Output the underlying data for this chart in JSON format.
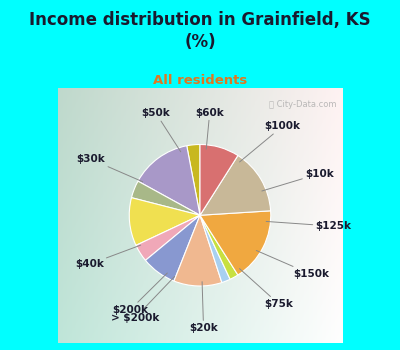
{
  "title": "Income distribution in Grainfield, KS\n(%)",
  "subtitle": "All residents",
  "title_color": "#1a1a2e",
  "subtitle_color": "#e07820",
  "background_color": "#00FFFF",
  "labels": [
    "$60k",
    "$100k",
    "$10k",
    "$125k",
    "$150k",
    "$75k",
    "$20k",
    "> $200k",
    "$200k",
    "$40k",
    "$30k",
    "$50k"
  ],
  "sizes": [
    3,
    14,
    4,
    11,
    4,
    8,
    11,
    2,
    2,
    17,
    15,
    9
  ],
  "colors": [
    "#c8b820",
    "#a898c8",
    "#a8b888",
    "#f0e050",
    "#f0a8b8",
    "#8898d0",
    "#f0b890",
    "#a8d0f0",
    "#c8e040",
    "#f0a840",
    "#c8b898",
    "#d87070"
  ],
  "startangle": 90,
  "wedge_edge_color": "#ffffff",
  "label_color": "#1a1a2e",
  "label_fontsize": 7.5
}
